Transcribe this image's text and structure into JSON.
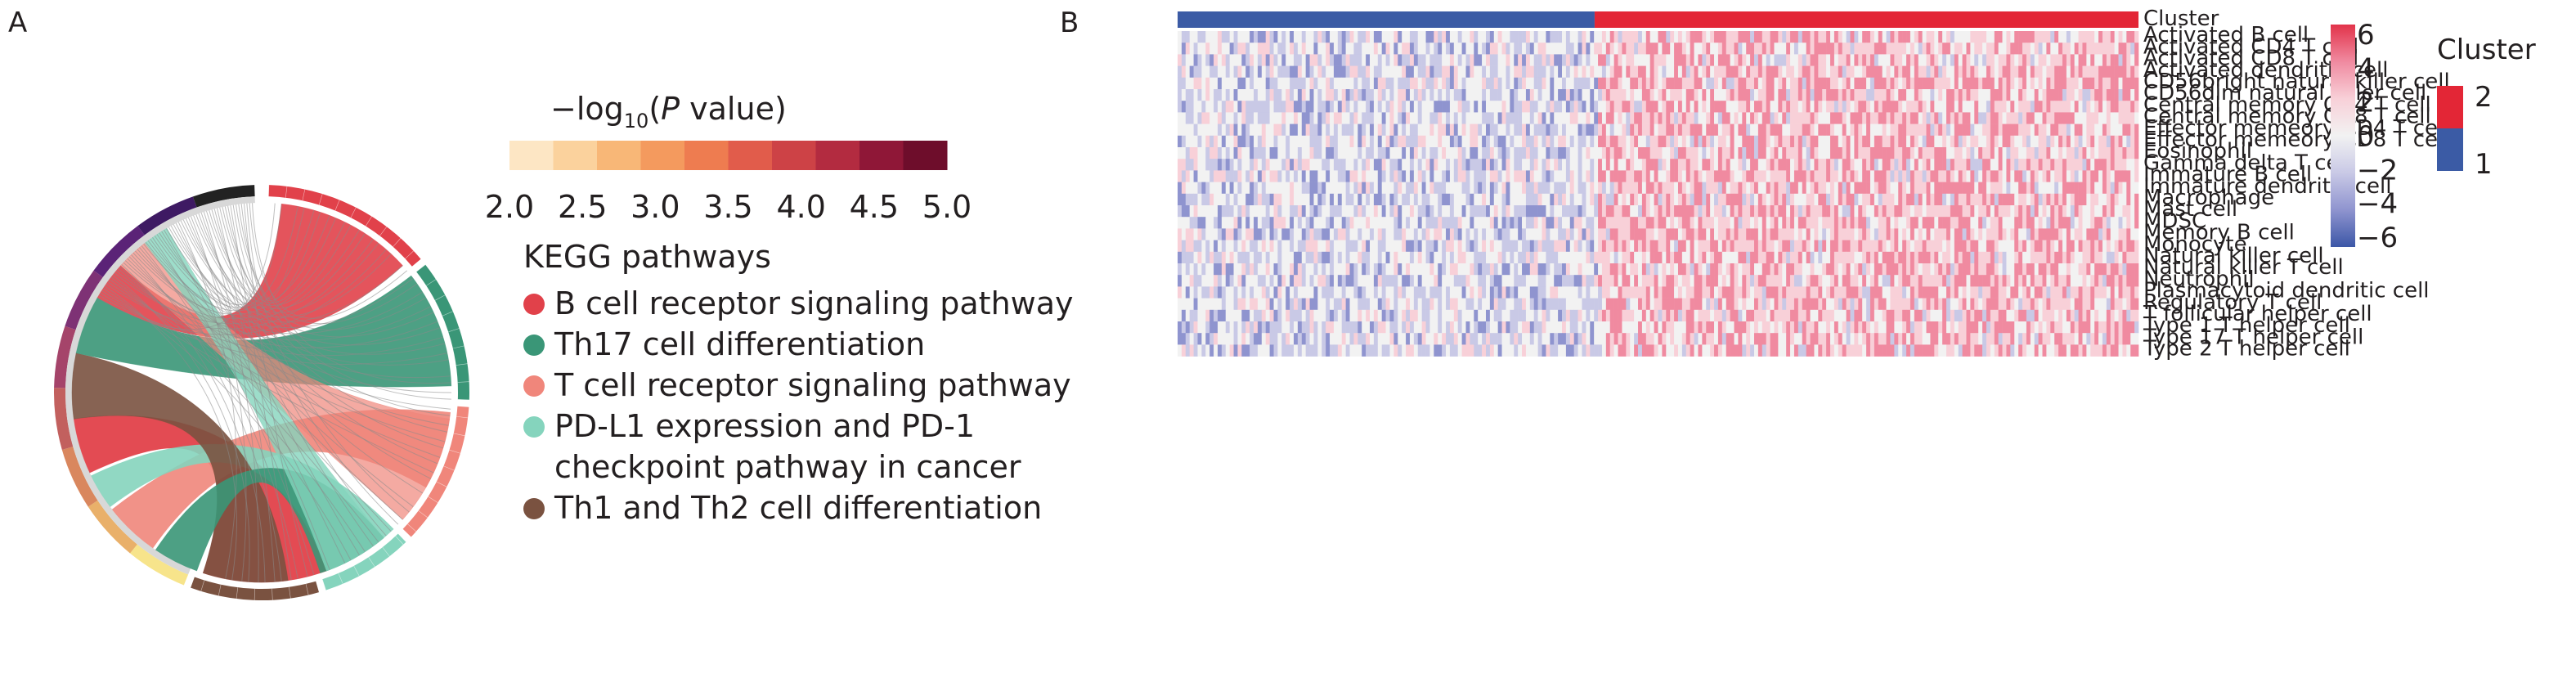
{
  "panels": {
    "a": "A",
    "b": "B"
  },
  "chart_data": [
    {
      "type": "chord",
      "pvalue_legend": {
        "title_prefix": "−log",
        "title_sub": "10",
        "title_open": "(",
        "title_p": "P",
        "title_rest": " value)",
        "ticks": [
          "2.0",
          "2.5",
          "3.0",
          "3.5",
          "4.0",
          "4.5",
          "5.0"
        ],
        "range": [
          2.0,
          5.0
        ],
        "colors": [
          "#fde6c4",
          "#fbd29d",
          "#f8b777",
          "#f49a5e",
          "#ee7c50",
          "#e15c4b",
          "#cd4246",
          "#b32b40",
          "#8f1737",
          "#6e0d2b"
        ]
      },
      "kegg_title": "KEGG pathways",
      "pathways": [
        {
          "label": "B cell receptor signaling pathway",
          "color": "#e1414a"
        },
        {
          "label": "Th17 cell differentiation",
          "color": "#3a9677"
        },
        {
          "label": "T cell receptor signaling pathway",
          "color": "#f0867b"
        },
        {
          "label": "PD-L1 expression and PD-1\ncheckpoint pathway in cancer",
          "color": "#85d4bd"
        },
        {
          "label": "Th1 and Th2 cell differentiation",
          "color": "#7a5240"
        }
      ]
    },
    {
      "type": "heatmap",
      "annotation_label": "Cluster",
      "rows": [
        "Activated B cell",
        "Activated CD4 T cell",
        "Activated CD8 T cell",
        "Activated dendritic cell",
        "CD56bright natural killer cell",
        "CD56dim natural killer cell",
        "Central memory CD4 T cell",
        "Central memory CD8 T cell",
        "Effector memeory CD4 T cell",
        "Effector memeory CD8 T cell",
        "Eosinophil",
        "Gamma delta T cell",
        "Immature B cell",
        "Immature dendritic cell",
        "Macrophage",
        "Mast cell",
        "MDSC",
        "Memory B cell",
        "Monocyte",
        "Natural killer cell",
        "Natural killer T cell",
        "Neutrophil",
        "Plasmacytoid dendritic cell",
        "Regulatory T cell",
        "T follicular helper cell",
        "Type 1 T helper cell",
        "Type 17 T helper cell",
        "Type 2 T helper cell"
      ],
      "clusters": [
        {
          "label": "1",
          "color": "#3b5ba5",
          "fraction": 0.434
        },
        {
          "label": "2",
          "color": "#e32636",
          "fraction": 0.566
        }
      ],
      "color_scale": {
        "ticks": [
          "6",
          "4",
          "2",
          "0",
          "−2",
          "−4",
          "−6"
        ],
        "range": [
          -6,
          6
        ],
        "stops": [
          "#e2334a",
          "#f08aa0",
          "#f8d0d8",
          "#f2f2f2",
          "#c9c9e6",
          "#8f94cf",
          "#3c57a7"
        ]
      },
      "cluster_legend": {
        "title": "Cluster",
        "items": [
          "2",
          "1"
        ]
      }
    }
  ]
}
